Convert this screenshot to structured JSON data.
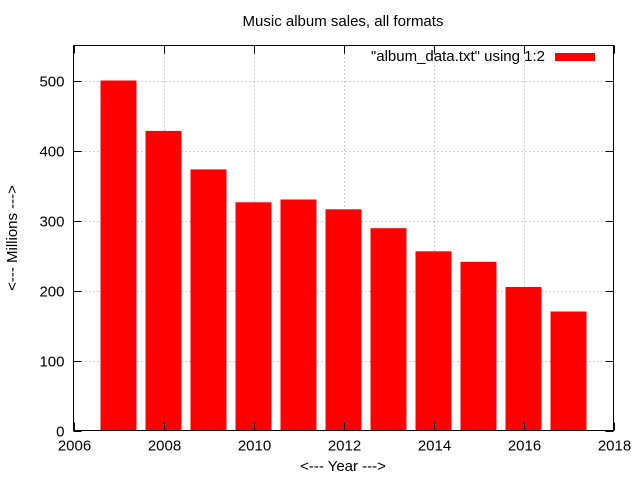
{
  "chart_data": {
    "type": "bar",
    "title": "Music album sales, all formats",
    "xlabel": "<--- Year --->",
    "ylabel": "<--- Millions --->",
    "xlim": [
      2006,
      2018
    ],
    "ylim": [
      0,
      550
    ],
    "xticks": [
      2006,
      2008,
      2010,
      2012,
      2014,
      2016,
      2018
    ],
    "yticks": [
      0,
      100,
      200,
      300,
      400,
      500
    ],
    "grid": true,
    "legend_position": "top-right",
    "series": [
      {
        "name": "\"album_data.txt\" using 1:2",
        "color": "#ff0000",
        "x": [
          2007,
          2008,
          2009,
          2010,
          2011,
          2012,
          2013,
          2014,
          2015,
          2016,
          2017
        ],
        "values": [
          500,
          428,
          373,
          326,
          330,
          316,
          289,
          256,
          241,
          205,
          170
        ]
      }
    ]
  }
}
